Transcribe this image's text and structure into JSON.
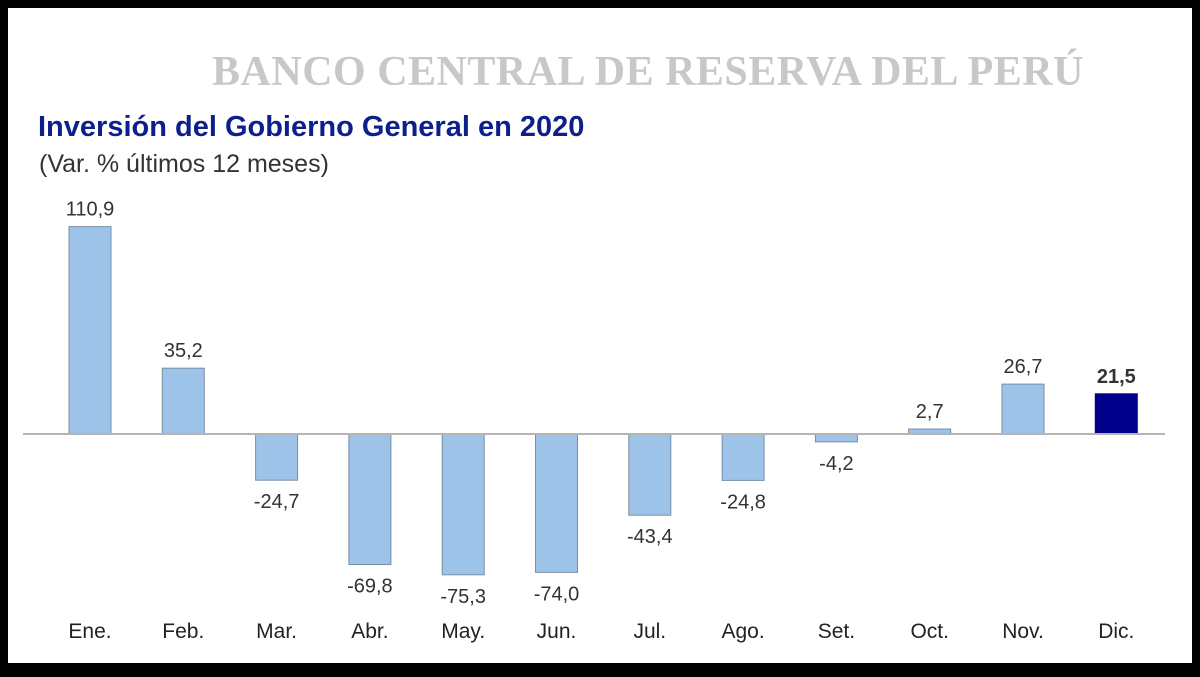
{
  "header": {
    "bank_name": "BANCO CENTRAL DE RESERVA DEL PERÚ"
  },
  "colors": {
    "bar_fill": "#9dc3e9",
    "bar_stroke": "#7a8ea3",
    "highlight_fill": "#00008b",
    "axis": "#b5b5b5",
    "title": "#0d1f8c"
  },
  "chart_data": {
    "type": "bar",
    "title": "Inversión del Gobierno General en 2020",
    "subtitle": "(Var. % últimos 12 meses)",
    "xlabel": "",
    "ylabel": "",
    "categories": [
      "Ene.",
      "Feb.",
      "Mar.",
      "Abr.",
      "May.",
      "Jun.",
      "Jul.",
      "Ago.",
      "Set.",
      "Oct.",
      "Nov.",
      "Dic."
    ],
    "values": [
      110.9,
      35.2,
      -24.7,
      -69.8,
      -75.3,
      -74.0,
      -43.4,
      -24.8,
      -4.2,
      2.7,
      26.7,
      21.5
    ],
    "labels": [
      "110,9",
      "35,2",
      "-24,7",
      "-69,8",
      "-75,3",
      "-74,0",
      "-43,4",
      "-24,8",
      "-4,2",
      "2,7",
      "26,7",
      "21,5"
    ],
    "highlight_index": 11,
    "ylim": [
      -80,
      115
    ],
    "grid": false,
    "legend": "none"
  }
}
